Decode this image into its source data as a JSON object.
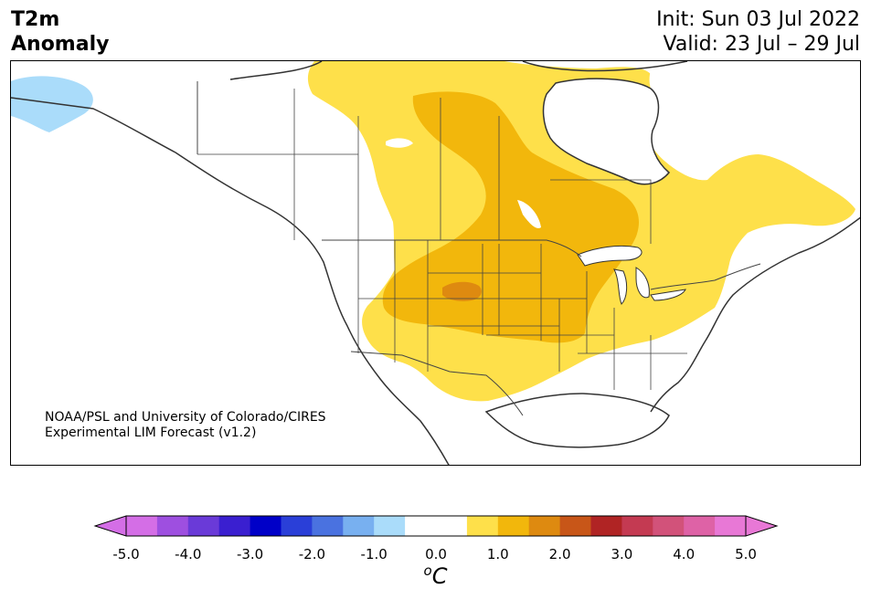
{
  "header": {
    "title_line1": "T2m",
    "title_line2": "Anomaly",
    "init": "Init: Sun 03 Jul 2022",
    "valid": "Valid: 23 Jul – 29 Jul"
  },
  "credit": {
    "line1": "NOAA/PSL and University of Colorado/CIRES",
    "line2": "Experimental LIM Forecast (v1.2)"
  },
  "colorbar": {
    "unit": "oC",
    "unit_base": "C",
    "unit_sup": "o",
    "ticks": [
      "-5.0",
      "-4.0",
      "-3.0",
      "-2.0",
      "-1.0",
      "0.0",
      "1.0",
      "2.0",
      "3.0",
      "4.0",
      "5.0"
    ],
    "colors": [
      "#d46ee6",
      "#9e4fe0",
      "#6a3ad8",
      "#3a1fd0",
      "#0000c8",
      "#2a3fd8",
      "#4a72e0",
      "#78b0f0",
      "#aadcfa",
      "#ffffff",
      "#ffffff",
      "#fee04a",
      "#f2b70c",
      "#de8a10",
      "#c85618",
      "#b02424",
      "#c43a52",
      "#d2527a",
      "#de62a6",
      "#e878d6"
    ],
    "extend_low_color": "#d46ee6",
    "extend_high_color": "#e878d6"
  },
  "map": {
    "region": "North America",
    "legend_colors": {
      "cold_1": "#aadcfa",
      "warm_1": "#fee04a",
      "warm_2": "#f2b70c",
      "warm_3": "#de8a10"
    }
  }
}
